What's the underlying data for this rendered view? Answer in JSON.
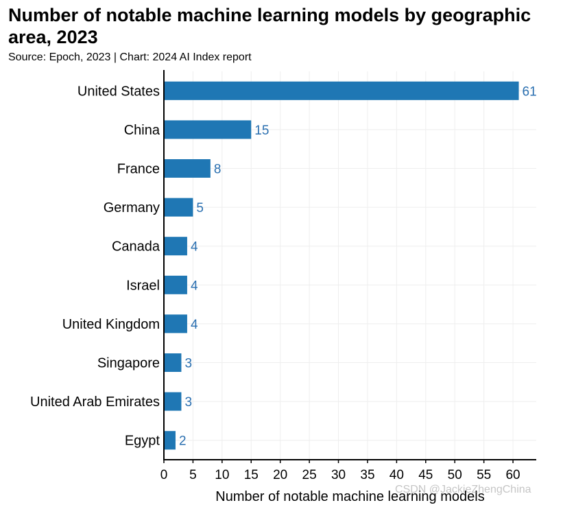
{
  "title": "Number of notable machine learning models by geographic area, 2023",
  "subtitle": "Source: Epoch, 2023 | Chart: 2024 AI Index report",
  "watermark": "CSDN @JackieZhengChina",
  "colors": {
    "bar": "#1f77b4",
    "label": "#2a6fb0",
    "grid": "#eeeeee",
    "axis": "#000000"
  },
  "chart_data": {
    "type": "bar",
    "orientation": "horizontal",
    "categories": [
      "United States",
      "China",
      "France",
      "Germany",
      "Canada",
      "Israel",
      "United Kingdom",
      "Singapore",
      "United Arab Emirates",
      "Egypt"
    ],
    "values": [
      61,
      15,
      8,
      5,
      4,
      4,
      4,
      3,
      3,
      2
    ],
    "xlabel": "Number of notable machine learning models",
    "ylabel": "",
    "xlim": [
      0,
      64
    ],
    "xticks": [
      0,
      5,
      10,
      15,
      20,
      25,
      30,
      35,
      40,
      45,
      50,
      55,
      60
    ],
    "grid": true
  }
}
